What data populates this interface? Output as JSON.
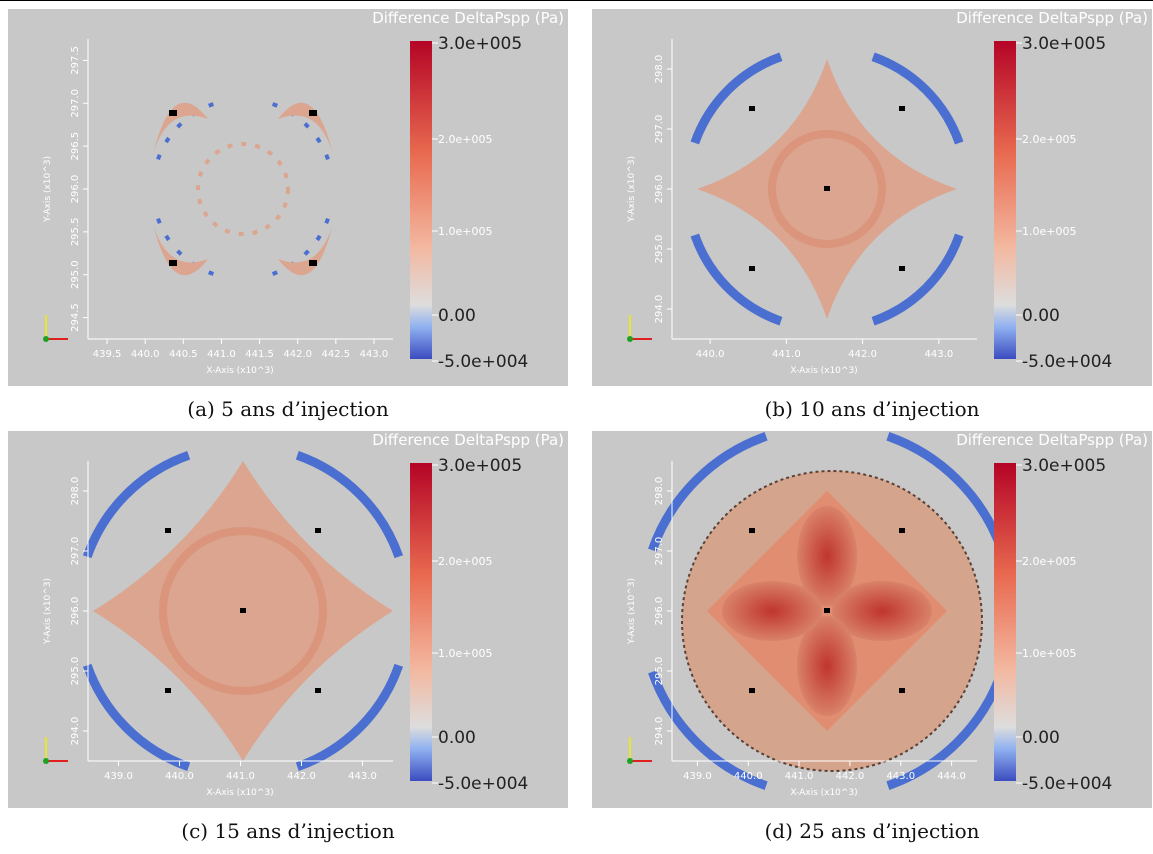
{
  "figure": {
    "panels": [
      {
        "title": "Difference DeltaPspp (Pa)",
        "colorbar_labels": [
          "3.0e+005",
          "2.0e+005",
          "1.0e+005",
          "0.00",
          "-5.0e+004"
        ],
        "x_axis_label": "X-Axis (x10^3)",
        "y_axis_label": "Y-Axis (x10^3)",
        "xticks": [
          "439.5",
          "440.0",
          "440.5",
          "441.0",
          "441.5",
          "442.0",
          "442.5",
          "443.0"
        ],
        "yticks": [
          "294.5",
          "295.0",
          "295.5",
          "296.0",
          "296.5",
          "297.0",
          "297.5"
        ],
        "caption": "(a) 5 ans d’injection"
      },
      {
        "title": "Difference DeltaPspp (Pa)",
        "colorbar_labels": [
          "3.0e+005",
          "2.0e+005",
          "1.0e+005",
          "0.00",
          "-5.0e+004"
        ],
        "x_axis_label": "X-Axis (x10^3)",
        "y_axis_label": "Y-Axis (x10^3)",
        "xticks": [
          "440.0",
          "441.0",
          "442.0",
          "443.0"
        ],
        "yticks": [
          "294.0",
          "295.0",
          "296.0",
          "297.0",
          "298.0"
        ],
        "caption": "(b) 10 ans d’injection"
      },
      {
        "title": "Difference DeltaPspp (Pa)",
        "colorbar_labels": [
          "3.0e+005",
          "2.0e+005",
          "1.0e+005",
          "0.00",
          "-5.0e+004"
        ],
        "x_axis_label": "X-Axis (x10^3)",
        "y_axis_label": "Y-Axis (x10^3)",
        "xticks": [
          "439.0",
          "440.0",
          "441.0",
          "442.0",
          "443.0"
        ],
        "yticks": [
          "294.0",
          "295.0",
          "296.0",
          "297.0",
          "298.0"
        ],
        "caption": "(c) 15 ans d’injection"
      },
      {
        "title": "Difference DeltaPspp (Pa)",
        "colorbar_labels": [
          "3.0e+005",
          "2.0e+005",
          "1.0e+005",
          "0.00",
          "-5.0e+004"
        ],
        "x_axis_label": "X-Axis (x10^3)",
        "y_axis_label": "Y-Axis (x10^3)",
        "xticks": [
          "439.0",
          "440.0",
          "441.0",
          "442.0",
          "443.0",
          "444.0"
        ],
        "yticks": [
          "294.0",
          "295.0",
          "296.0",
          "297.0",
          "298.0"
        ],
        "caption": "(d) 25 ans d’injection"
      }
    ]
  }
}
